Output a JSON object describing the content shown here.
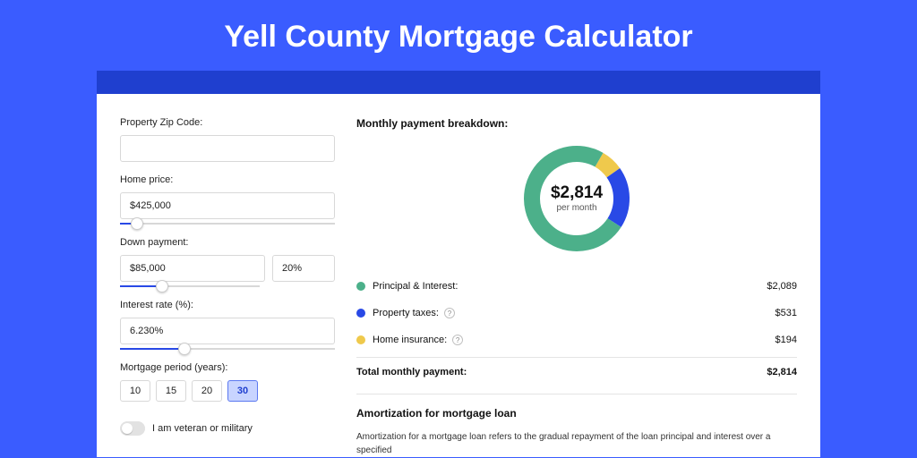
{
  "page": {
    "title": "Yell County Mortgage Calculator",
    "background_color": "#3a5cff",
    "header_bar_color": "#1f3fcf",
    "card_bg": "#ffffff"
  },
  "form": {
    "zip": {
      "label": "Property Zip Code:",
      "value": ""
    },
    "home_price": {
      "label": "Home price:",
      "value": "$425,000",
      "slider_pct": 8
    },
    "down_payment": {
      "label": "Down payment:",
      "value": "$85,000",
      "pct_value": "20%",
      "slider_pct": 20
    },
    "interest_rate": {
      "label": "Interest rate (%):",
      "value": "6.230%",
      "slider_pct": 30
    },
    "mortgage_period": {
      "label": "Mortgage period (years):",
      "options": [
        "10",
        "15",
        "20",
        "30"
      ],
      "active_index": 3
    },
    "veteran": {
      "label": "I am veteran or military",
      "checked": false
    }
  },
  "breakdown": {
    "title": "Monthly payment breakdown:",
    "center_amount": "$2,814",
    "center_sub": "per month",
    "items": [
      {
        "label": "Principal & Interest:",
        "value": "$2,089",
        "color": "#4cb08a",
        "numeric": 2089,
        "has_info": false
      },
      {
        "label": "Property taxes:",
        "value": "$531",
        "color": "#2949e6",
        "numeric": 531,
        "has_info": true
      },
      {
        "label": "Home insurance:",
        "value": "$194",
        "color": "#efc94c",
        "numeric": 194,
        "has_info": true
      }
    ],
    "total_label": "Total monthly payment:",
    "total_value": "$2,814",
    "donut": {
      "radius": 50,
      "stroke_width": 18,
      "bg": "#ffffff",
      "order": [
        2,
        1,
        0
      ]
    }
  },
  "amortization": {
    "title": "Amortization for mortgage loan",
    "text": "Amortization for a mortgage loan refers to the gradual repayment of the loan principal and interest over a specified"
  }
}
